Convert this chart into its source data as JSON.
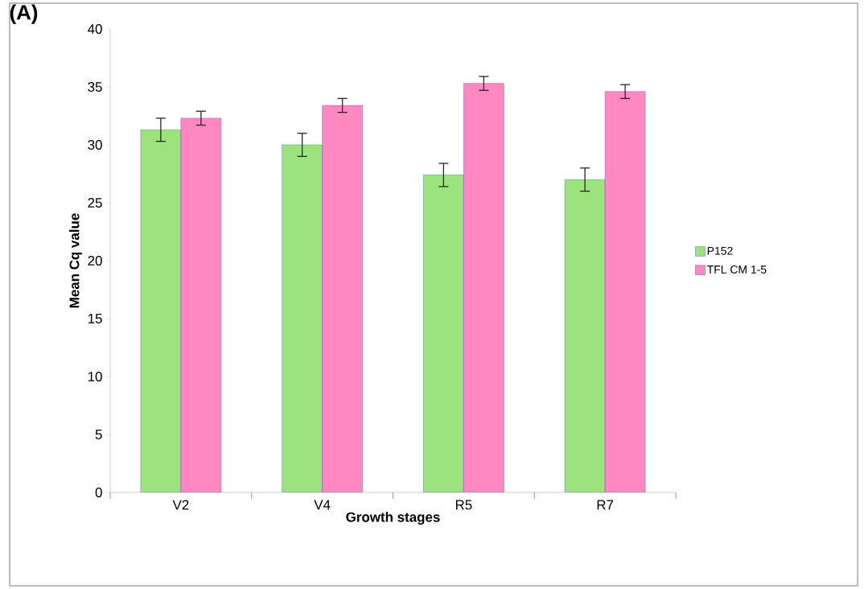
{
  "chart_data": {
    "type": "bar",
    "title": "(A)",
    "xlabel": "Growth stages",
    "ylabel": "Mean Cq value",
    "categories": [
      "V2",
      "V4",
      "R5",
      "R7"
    ],
    "series": [
      {
        "name": "P152",
        "color": "#9de37d",
        "values": [
          31.3,
          30.0,
          27.4,
          27.0
        ],
        "errors": [
          1.0,
          1.0,
          1.0,
          1.0
        ]
      },
      {
        "name": "TFL CM 1-5",
        "color": "#ff88c0",
        "values": [
          32.3,
          33.4,
          35.3,
          34.6
        ],
        "errors": [
          0.6,
          0.6,
          0.6,
          0.6
        ]
      }
    ],
    "ylim": [
      0,
      40
    ],
    "yticks": [
      0,
      5,
      10,
      15,
      20,
      25,
      30,
      35,
      40
    ],
    "grid": false,
    "legend": "right"
  }
}
